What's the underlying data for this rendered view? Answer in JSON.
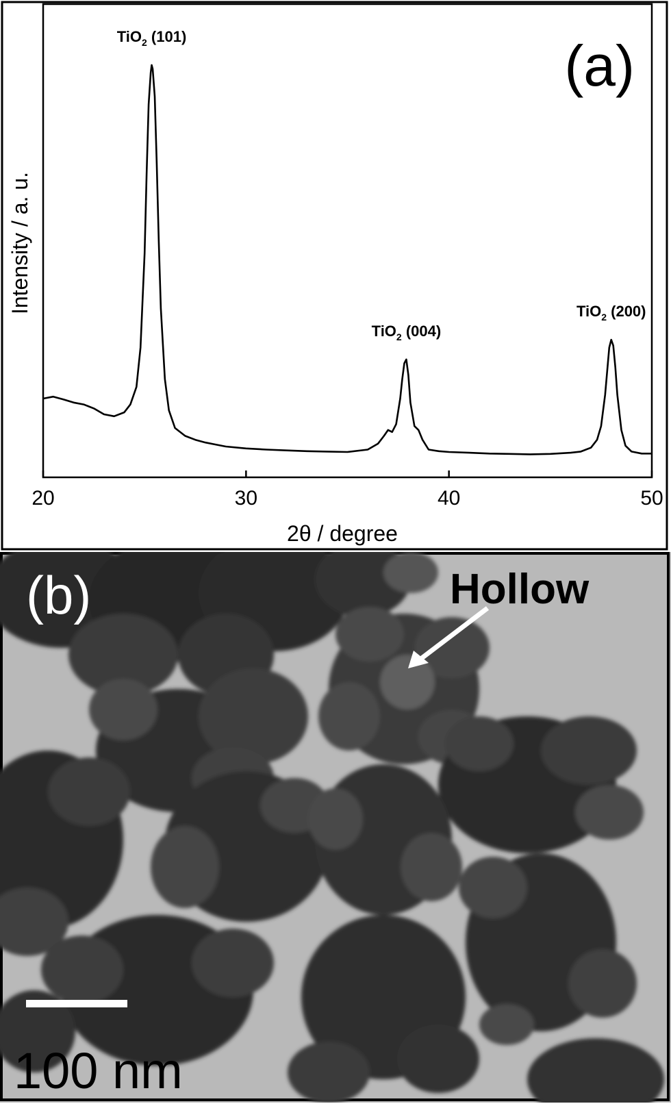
{
  "panel_a": {
    "label": "(a)",
    "chart_data": {
      "type": "line",
      "title": "",
      "xlabel": "2θ / degree",
      "ylabel": "Intensity / a. u.",
      "xlim": [
        20,
        50
      ],
      "ylim": [
        0,
        100
      ],
      "y_ticks_shown": false,
      "x_ticks": [
        20,
        30,
        40,
        50
      ],
      "grid": false,
      "legend": "none",
      "series": [
        {
          "x": [
            20.0,
            20.5,
            21.0,
            21.5,
            22.0,
            22.5,
            23.0,
            23.5,
            24.0,
            24.3,
            24.6,
            24.8,
            25.0,
            25.1,
            25.2,
            25.3,
            25.35,
            25.4,
            25.5,
            25.6,
            25.7,
            25.8,
            26.0,
            26.2,
            26.5,
            27.0,
            27.5,
            28.0,
            28.5,
            29.0,
            30.0,
            31.0,
            32.0,
            33.0,
            34.0,
            35.0,
            36.0,
            36.5,
            36.8,
            37.0,
            37.2,
            37.4,
            37.6,
            37.7,
            37.8,
            37.9,
            38.0,
            38.1,
            38.3,
            38.5,
            38.7,
            39.0,
            39.5,
            40.0,
            41.0,
            42.0,
            43.0,
            44.0,
            45.0,
            46.0,
            46.5,
            47.0,
            47.3,
            47.5,
            47.7,
            47.8,
            47.9,
            48.0,
            48.1,
            48.2,
            48.3,
            48.5,
            48.7,
            49.0,
            49.5,
            50.0
          ],
          "y": [
            15.0,
            15.5,
            14.8,
            14.0,
            13.5,
            12.5,
            11.0,
            10.5,
            11.5,
            13.5,
            18.0,
            28.0,
            52.0,
            72.0,
            90.0,
            98.0,
            100.0,
            99.0,
            92.0,
            75.0,
            55.0,
            38.0,
            20.0,
            12.0,
            7.5,
            5.5,
            4.5,
            3.8,
            3.3,
            2.8,
            2.3,
            2.0,
            1.8,
            1.6,
            1.5,
            1.4,
            2.0,
            3.5,
            5.5,
            7.0,
            6.5,
            8.5,
            15.0,
            20.0,
            24.0,
            25.0,
            21.0,
            14.0,
            8.0,
            7.0,
            4.5,
            2.0,
            1.6,
            1.4,
            1.2,
            1.0,
            0.9,
            0.8,
            0.9,
            1.2,
            1.5,
            2.5,
            4.5,
            8.0,
            16.0,
            22.0,
            28.0,
            30.0,
            28.5,
            23.0,
            16.0,
            7.0,
            3.0,
            1.5,
            1.0,
            1.0
          ]
        }
      ],
      "annotations": [
        {
          "text": "TiO",
          "sub": "2",
          "rest": " (101)",
          "x": 25.35
        },
        {
          "text": "TiO",
          "sub": "2",
          "rest": " (004)",
          "x": 37.9
        },
        {
          "text": "TiO",
          "sub": "2",
          "rest": " (200)",
          "x": 48.0
        }
      ]
    }
  },
  "panel_b": {
    "label": "(b)",
    "annotation": "Hollow",
    "scale_bar_label": "100 nm"
  }
}
